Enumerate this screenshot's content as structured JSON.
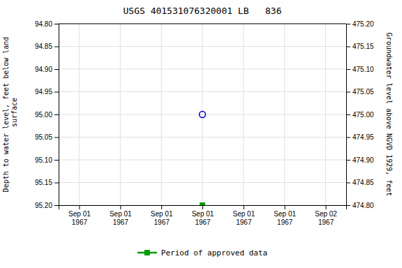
{
  "chart_data": {
    "type": "scatter",
    "title": "USGS 401531076320001 LB   836",
    "y_label": "Depth to water level, feet below land\n surface",
    "y2_label": "Groundwater level above NGVD 1929, feet",
    "categories": [
      "Sep 01\n1967",
      "Sep 01\n1967",
      "Sep 01\n1967",
      "Sep 01\n1967",
      "Sep 01\n1967",
      "Sep 01\n1967",
      "Sep 02\n1967"
    ],
    "series": [
      {
        "color": "#0000cc",
        "marker": "circle",
        "values": [
          null,
          null,
          null,
          95.0,
          null,
          null,
          null
        ]
      },
      {
        "name": "Period of approved data",
        "color": "#009900",
        "marker": "square",
        "values": [
          null,
          null,
          null,
          95.2,
          null,
          null,
          null
        ]
      }
    ],
    "ylim": [
      95.2,
      94.8
    ],
    "yticks": [
      {
        "value": 94.8,
        "label": "94.80"
      },
      94.85,
      {
        "value": 94.9,
        "label": "94.90"
      },
      94.95,
      {
        "value": 95.0,
        "label": "95.00"
      },
      95.05,
      {
        "value": 95.1,
        "label": "95.10"
      },
      95.15,
      {
        "value": 95.2,
        "label": "95.20"
      }
    ],
    "y2lim": [
      474.8,
      475.2
    ],
    "y2ticks": [
      {
        "value": 475.2,
        "label": "475.20"
      },
      475.15,
      {
        "value": 475.1,
        "label": "475.10"
      },
      475.05,
      {
        "value": 475.0,
        "label": "475.00"
      },
      474.95,
      {
        "value": 474.9,
        "label": "474.90"
      },
      474.85,
      {
        "value": 474.8,
        "label": "474.80"
      }
    ],
    "grid": true,
    "legend": "bottom"
  }
}
